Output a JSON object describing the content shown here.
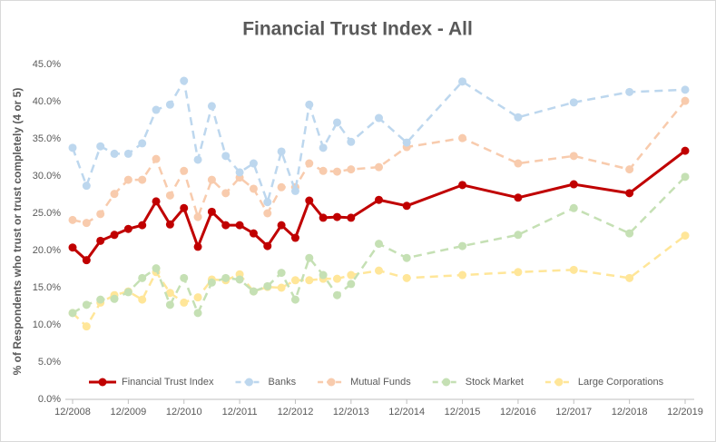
{
  "chart_data": {
    "type": "line",
    "title": "Financial Trust Index - All",
    "y_label": "% of Respondents who trust or trust completely (4 or 5)",
    "x": [
      0,
      3,
      6,
      9,
      12,
      15,
      18,
      21,
      24,
      27,
      30,
      33,
      36,
      39,
      42,
      45,
      48,
      51,
      54,
      57,
      60,
      66,
      72,
      84,
      96,
      108,
      120,
      132
    ],
    "xlim": [
      0,
      132
    ],
    "xticks": [
      {
        "value": 0,
        "label": "12/2008"
      },
      {
        "value": 12,
        "label": "12/2009"
      },
      {
        "value": 24,
        "label": "12/2010"
      },
      {
        "value": 36,
        "label": "12/2011"
      },
      {
        "value": 48,
        "label": "12/2012"
      },
      {
        "value": 60,
        "label": "12/2013"
      },
      {
        "value": 72,
        "label": "12/2014"
      },
      {
        "value": 84,
        "label": "12/2015"
      },
      {
        "value": 96,
        "label": "12/2016"
      },
      {
        "value": 108,
        "label": "12/2017"
      },
      {
        "value": 120,
        "label": "12/2018"
      },
      {
        "value": 132,
        "label": "12/2019"
      }
    ],
    "ylim": [
      0,
      45
    ],
    "yticks": [
      {
        "value": 0,
        "label": "0.0%"
      },
      {
        "value": 5,
        "label": "5.0%"
      },
      {
        "value": 10,
        "label": "10.0%"
      },
      {
        "value": 15,
        "label": "15.0%"
      },
      {
        "value": 20,
        "label": "20.0%"
      },
      {
        "value": 25,
        "label": "25.0%"
      },
      {
        "value": 30,
        "label": "30.0%"
      },
      {
        "value": 35,
        "label": "35.0%"
      },
      {
        "value": 40,
        "label": "40.0%"
      },
      {
        "value": 45,
        "label": "45.0%"
      }
    ],
    "grid": false,
    "legend": "bottom",
    "series": [
      {
        "name": "Financial Trust Index",
        "color": "#c00000",
        "dashed": false,
        "values": [
          20.4,
          18.7,
          21.3,
          22.1,
          22.9,
          23.4,
          26.6,
          23.5,
          25.7,
          20.5,
          25.2,
          23.4,
          23.4,
          22.3,
          20.6,
          23.4,
          21.7,
          26.7,
          24.4,
          24.5,
          24.4,
          26.8,
          26.0,
          28.8,
          27.1,
          28.9,
          27.7,
          33.4
        ]
      },
      {
        "name": "Banks",
        "color": "#bdd7ee",
        "dashed": true,
        "values": [
          33.8,
          28.7,
          34.0,
          33.0,
          33.0,
          34.4,
          38.9,
          39.6,
          42.8,
          32.2,
          39.4,
          32.7,
          30.5,
          31.7,
          26.5,
          33.3,
          28.0,
          39.6,
          33.8,
          37.2,
          34.6,
          37.8,
          34.5,
          42.7,
          37.9,
          39.9,
          41.3,
          41.6
        ]
      },
      {
        "name": "Mutual Funds",
        "color": "#f8cbad",
        "dashed": true,
        "values": [
          24.1,
          23.7,
          24.9,
          27.6,
          29.5,
          29.5,
          32.3,
          27.4,
          30.7,
          24.5,
          29.5,
          27.7,
          29.8,
          28.3,
          25.0,
          28.5,
          28.5,
          31.7,
          30.7,
          30.6,
          30.9,
          31.2,
          33.9,
          35.1,
          31.7,
          32.7,
          30.9,
          40.1
        ]
      },
      {
        "name": "Stock Market",
        "color": "#c5e0b4",
        "dashed": true,
        "values": [
          11.6,
          12.7,
          13.4,
          13.5,
          14.4,
          16.3,
          17.6,
          12.7,
          16.3,
          11.6,
          15.7,
          16.3,
          16.1,
          14.5,
          15.2,
          17.0,
          13.4,
          19.0,
          16.7,
          14.0,
          15.5,
          20.9,
          19.0,
          20.6,
          22.1,
          25.7,
          22.3,
          29.9
        ]
      },
      {
        "name": "Large Corporations",
        "color": "#ffe699",
        "dashed": true,
        "values": [
          11.6,
          9.8,
          13.0,
          14.0,
          14.5,
          13.4,
          17.1,
          14.3,
          13.0,
          13.7,
          16.1,
          16.0,
          16.8,
          14.5,
          15.1,
          15.0,
          16.0,
          16.0,
          16.2,
          16.2,
          16.7,
          17.3,
          16.3,
          16.7,
          17.1,
          17.4,
          16.3,
          22.0
        ]
      }
    ]
  }
}
